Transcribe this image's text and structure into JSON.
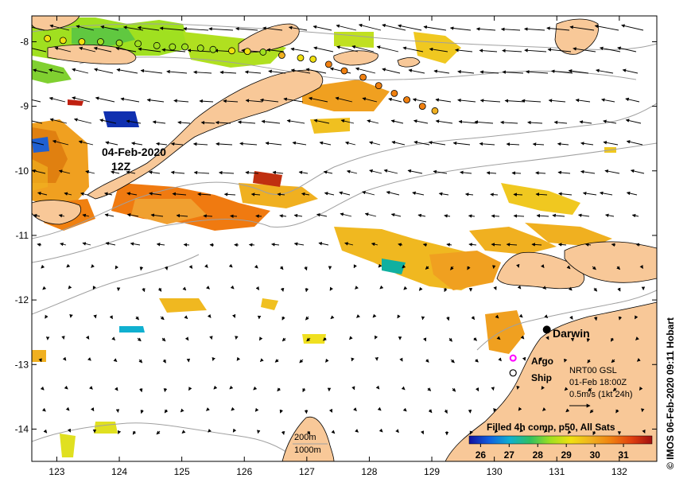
{
  "map": {
    "lon_range": [
      122.6,
      132.6
    ],
    "lat_range": [
      -14.5,
      -7.6
    ],
    "lon_ticks": [
      123,
      124,
      125,
      126,
      127,
      128,
      129,
      130,
      131,
      132
    ],
    "lat_ticks": [
      -8,
      -9,
      -10,
      -11,
      -12,
      -13,
      -14
    ],
    "lon_tick_labels": [
      "123",
      "124",
      "125",
      "126",
      "127",
      "128",
      "129",
      "130",
      "131",
      "132"
    ],
    "lat_tick_labels": [
      "-8",
      "-9",
      "-10",
      "-11",
      "-12",
      "-13",
      "-14"
    ]
  },
  "labels": {
    "date": "04-Feb-2020",
    "time": "12Z",
    "city": "Darwin",
    "argo": "Argo",
    "ship": "Ship",
    "current_source": "NRT00 GSL",
    "current_time": "01-Feb 18:00Z",
    "current_scale": "0.5m/s (1kt 24h)",
    "depth_200": "200m",
    "depth_1000": "1000m",
    "product": "Filled 4h comp, p50, All Sats",
    "credit": "© IMOS 06-Feb-2020 09:11 Hobart"
  },
  "colorbar": {
    "ticks": [
      "26",
      "27",
      "28",
      "29",
      "30",
      "31"
    ],
    "tick_values": [
      26,
      27,
      28,
      29,
      30,
      31
    ],
    "range": [
      25.6,
      32.0
    ],
    "colors": [
      "#1010a0",
      "#1060e0",
      "#10b0d0",
      "#30c060",
      "#a0e020",
      "#f0e010",
      "#f0b020",
      "#f08010",
      "#e04010",
      "#a01010"
    ]
  },
  "colors": {
    "land": "#f8c898",
    "contour": "#a0a0a0",
    "argo": "#ff00ff"
  },
  "city": {
    "name": "Darwin",
    "lon": 130.84,
    "lat": -12.46
  },
  "argo_float": {
    "lon": 130.3,
    "lat": -12.9
  },
  "ship_marker": {
    "lon": 130.3,
    "lat": -13.13
  },
  "drifter_track": [
    {
      "lon": 122.85,
      "lat": -7.95,
      "sst": 28.8
    },
    {
      "lon": 123.1,
      "lat": -7.98,
      "sst": 29.0
    },
    {
      "lon": 123.4,
      "lat": -8.0,
      "sst": 28.9
    },
    {
      "lon": 123.7,
      "lat": -8.0,
      "sst": 28.7
    },
    {
      "lon": 124.0,
      "lat": -8.02,
      "sst": 28.6
    },
    {
      "lon": 124.3,
      "lat": -8.03,
      "sst": 28.4
    },
    {
      "lon": 124.6,
      "lat": -8.06,
      "sst": 28.3
    },
    {
      "lon": 124.85,
      "lat": -8.08,
      "sst": 28.4
    },
    {
      "lon": 125.05,
      "lat": -8.08,
      "sst": 28.6
    },
    {
      "lon": 125.3,
      "lat": -8.1,
      "sst": 28.5
    },
    {
      "lon": 125.5,
      "lat": -8.12,
      "sst": 28.7
    },
    {
      "lon": 125.8,
      "lat": -8.14,
      "sst": 28.9
    },
    {
      "lon": 126.05,
      "lat": -8.15,
      "sst": 29.0
    },
    {
      "lon": 126.3,
      "lat": -8.16,
      "sst": 28.7
    },
    {
      "lon": 126.6,
      "lat": -8.21,
      "sst": 29.8
    },
    {
      "lon": 126.9,
      "lat": -8.25,
      "sst": 29.1
    },
    {
      "lon": 127.1,
      "lat": -8.27,
      "sst": 29.5
    },
    {
      "lon": 127.35,
      "lat": -8.35,
      "sst": 30.6
    },
    {
      "lon": 127.6,
      "lat": -8.45,
      "sst": 30.9
    },
    {
      "lon": 127.9,
      "lat": -8.55,
      "sst": 30.4
    },
    {
      "lon": 128.15,
      "lat": -8.68,
      "sst": 30.5
    },
    {
      "lon": 128.4,
      "lat": -8.8,
      "sst": 30.7
    },
    {
      "lon": 128.6,
      "lat": -8.9,
      "sst": 30.5
    },
    {
      "lon": 128.85,
      "lat": -9.0,
      "sst": 30.3
    },
    {
      "lon": 129.05,
      "lat": -9.07,
      "sst": 30.1
    }
  ]
}
